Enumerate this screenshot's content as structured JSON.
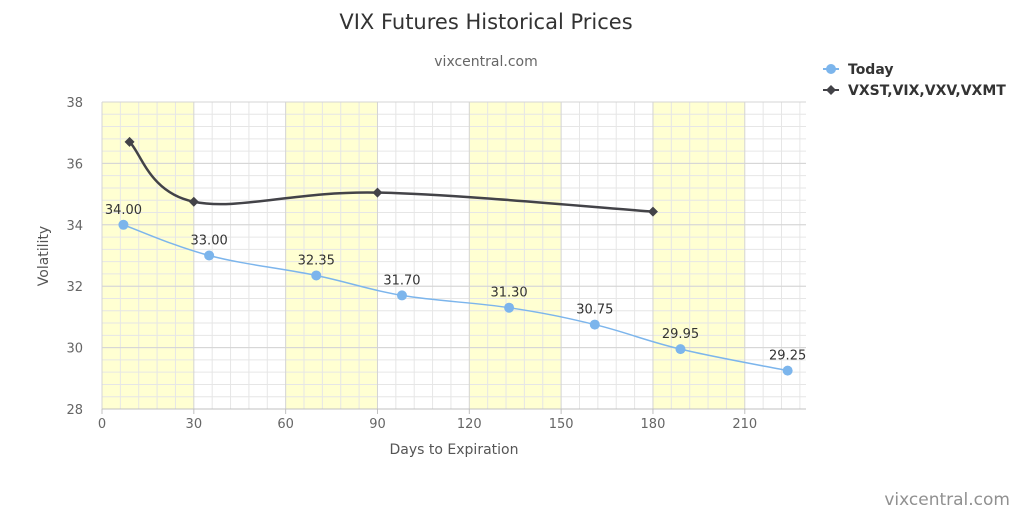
{
  "credit": "vixcentral.com",
  "chart_data": {
    "type": "line",
    "title": "VIX Futures Historical Prices",
    "subtitle": "vixcentral.com",
    "xlabel": "Days to Expiration",
    "ylabel": "Volatility",
    "xlim": [
      0,
      230
    ],
    "ylim": [
      28,
      38
    ],
    "x_ticks": [
      0,
      30,
      60,
      90,
      120,
      150,
      180,
      210
    ],
    "y_ticks": [
      28,
      30,
      32,
      34,
      36,
      38
    ],
    "grid": true,
    "shaded_x_bands": [
      [
        0,
        30
      ],
      [
        60,
        90
      ],
      [
        120,
        150
      ],
      [
        180,
        210
      ]
    ],
    "legend_position": "top-right",
    "series": [
      {
        "name": "Today",
        "color": "#7cb5ec",
        "marker": "circle",
        "x": [
          7,
          35,
          70,
          98,
          133,
          161,
          189,
          224
        ],
        "y": [
          34.0,
          33.0,
          32.35,
          31.7,
          31.3,
          30.75,
          29.95,
          29.25
        ],
        "labels": [
          "34.00",
          "33.00",
          "32.35",
          "31.70",
          "31.30",
          "30.75",
          "29.95",
          "29.25"
        ]
      },
      {
        "name": "VXST,VIX,VXV,VXMT",
        "color": "#434348",
        "marker": "diamond",
        "x": [
          9,
          30,
          90,
          180
        ],
        "y": [
          36.7,
          34.75,
          35.05,
          34.43
        ]
      }
    ]
  }
}
